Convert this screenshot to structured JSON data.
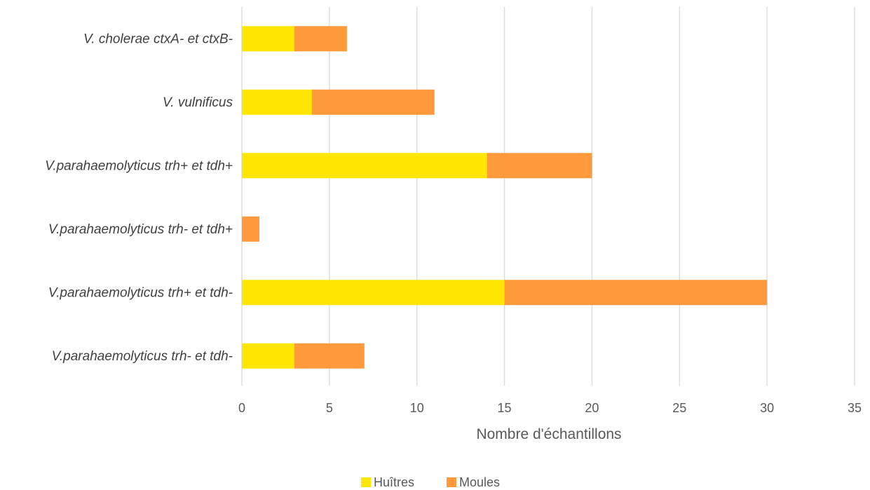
{
  "chart_data": {
    "type": "bar",
    "orientation": "horizontal",
    "stacked": true,
    "categories": [
      "V. cholerae ctxA- et ctxB-",
      "V. vulnificus",
      "V.parahaemolyticus trh+ et tdh+",
      "V.parahaemolyticus trh- et tdh+",
      "V.parahaemolyticus trh+ et tdh-",
      "V.parahaemolyticus trh- et tdh-"
    ],
    "series": [
      {
        "name": "Huîtres",
        "color": "#FFE600",
        "values": [
          3,
          4,
          14,
          0,
          15,
          3
        ]
      },
      {
        "name": "Moules",
        "color": "#FF9A3C",
        "values": [
          3,
          7,
          6,
          1,
          15,
          4
        ]
      }
    ],
    "xlabel": "Nombre d'échantillons",
    "ylabel": "",
    "xlim": [
      0,
      35
    ],
    "xticks": [
      "0",
      "5",
      "10",
      "15",
      "20",
      "25",
      "30",
      "35"
    ],
    "grid": "vertical",
    "legend": "bottom"
  }
}
